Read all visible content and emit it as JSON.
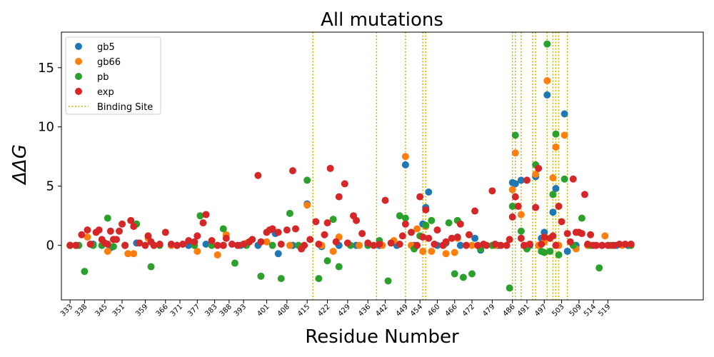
{
  "chart_data": {
    "type": "scatter",
    "title": "All mutations",
    "xlabel": "Residue Number",
    "ylabel": "ΔΔG",
    "ylim": [
      -4.6,
      18
    ],
    "xlim": [
      330,
      552
    ],
    "y_ticks": [
      0,
      5,
      10,
      15
    ],
    "x_ticks": [
      333,
      338,
      345,
      351,
      359,
      366,
      371,
      377,
      383,
      388,
      393,
      401,
      408,
      415,
      422,
      429,
      436,
      442,
      449,
      454,
      460,
      466,
      472,
      479,
      486,
      491,
      497,
      503,
      509,
      514,
      519
    ],
    "legend": {
      "position": "top-left",
      "entries": [
        "gb5",
        "gb66",
        "pb",
        "exp",
        "Binding Site"
      ]
    },
    "binding_sites": [
      417,
      439,
      449,
      455,
      456,
      486,
      487,
      489,
      493,
      494,
      498,
      500,
      501,
      502,
      505
    ],
    "colors": {
      "gb5": "#1f77b4",
      "gb66": "#ff7f0e",
      "pb": "#2ca02c",
      "exp": "#d62728",
      "binding_site": "#c8b400"
    },
    "series": [
      {
        "name": "gb5",
        "points": [
          [
            333,
            0.0
          ],
          [
            335,
            0.0
          ],
          [
            341,
            0.1
          ],
          [
            344,
            0.0
          ],
          [
            347,
            -0.2
          ],
          [
            352,
            0.0
          ],
          [
            356,
            0.2
          ],
          [
            362,
            0.0
          ],
          [
            368,
            0.0
          ],
          [
            374,
            0.0
          ],
          [
            380,
            0.1
          ],
          [
            386,
            0.0
          ],
          [
            392,
            0.0
          ],
          [
            398,
            0.0
          ],
          [
            404,
            1.0
          ],
          [
            405,
            -0.7
          ],
          [
            410,
            0.0
          ],
          [
            415,
            3.5
          ],
          [
            420,
            -0.1
          ],
          [
            426,
            0.0
          ],
          [
            432,
            0.0
          ],
          [
            440,
            0.0
          ],
          [
            446,
            0.0
          ],
          [
            449,
            6.8
          ],
          [
            452,
            0.0
          ],
          [
            455,
            1.8
          ],
          [
            456,
            3.2
          ],
          [
            457,
            4.5
          ],
          [
            460,
            0.0
          ],
          [
            463,
            0.2
          ],
          [
            468,
            0.0
          ],
          [
            473,
            0.6
          ],
          [
            475,
            -0.4
          ],
          [
            481,
            0.0
          ],
          [
            486,
            5.3
          ],
          [
            487,
            5.2
          ],
          [
            489,
            5.5
          ],
          [
            492,
            0.0
          ],
          [
            494,
            5.8
          ],
          [
            496,
            0.6
          ],
          [
            497,
            1.1
          ],
          [
            498,
            12.7
          ],
          [
            500,
            2.8
          ],
          [
            501,
            4.8
          ],
          [
            504,
            11.1
          ],
          [
            505,
            -0.5
          ],
          [
            508,
            0.0
          ],
          [
            512,
            0.0
          ],
          [
            517,
            0.0
          ],
          [
            522,
            0.0
          ],
          [
            526,
            0.0
          ]
        ]
      },
      {
        "name": "gb66",
        "points": [
          [
            333,
            0.0
          ],
          [
            339,
            0.7
          ],
          [
            346,
            -0.5
          ],
          [
            353,
            -0.7
          ],
          [
            355,
            -0.7
          ],
          [
            360,
            0.6
          ],
          [
            368,
            0.0
          ],
          [
            377,
            -0.5
          ],
          [
            384,
            -0.8
          ],
          [
            387,
            0.9
          ],
          [
            394,
            0.2
          ],
          [
            401,
            0.3
          ],
          [
            409,
            0.0
          ],
          [
            415,
            3.4
          ],
          [
            420,
            0.0
          ],
          [
            424,
            -0.5
          ],
          [
            426,
            0.7
          ],
          [
            433,
            0.0
          ],
          [
            441,
            0.0
          ],
          [
            445,
            0.4
          ],
          [
            449,
            7.5
          ],
          [
            451,
            0.0
          ],
          [
            453,
            1.4
          ],
          [
            455,
            -0.5
          ],
          [
            456,
            1.6
          ],
          [
            458,
            -0.5
          ],
          [
            463,
            -0.7
          ],
          [
            466,
            -0.6
          ],
          [
            467,
            0.6
          ],
          [
            472,
            0.0
          ],
          [
            480,
            0.0
          ],
          [
            485,
            0.5
          ],
          [
            486,
            4.7
          ],
          [
            487,
            7.8
          ],
          [
            489,
            2.6
          ],
          [
            491,
            0.0
          ],
          [
            494,
            6.0
          ],
          [
            495,
            0.0
          ],
          [
            497,
            0.3
          ],
          [
            498,
            13.9
          ],
          [
            500,
            5.7
          ],
          [
            501,
            8.3
          ],
          [
            502,
            0.0
          ],
          [
            504,
            9.3
          ],
          [
            508,
            -0.3
          ],
          [
            512,
            0.0
          ],
          [
            518,
            0.8
          ],
          [
            524,
            0.0
          ],
          [
            527,
            0.0
          ]
        ]
      },
      {
        "name": "pb",
        "points": [
          [
            333,
            0.0
          ],
          [
            336,
            0.0
          ],
          [
            338,
            -2.2
          ],
          [
            341,
            0.0
          ],
          [
            344,
            0.0
          ],
          [
            346,
            2.3
          ],
          [
            348,
            -0.1
          ],
          [
            352,
            0.0
          ],
          [
            356,
            1.8
          ],
          [
            361,
            -1.8
          ],
          [
            364,
            0.0
          ],
          [
            370,
            0.0
          ],
          [
            376,
            0.0
          ],
          [
            378,
            2.5
          ],
          [
            382,
            0.0
          ],
          [
            386,
            1.4
          ],
          [
            390,
            -1.5
          ],
          [
            394,
            0.0
          ],
          [
            399,
            -2.6
          ],
          [
            403,
            0.0
          ],
          [
            406,
            -2.8
          ],
          [
            409,
            2.7
          ],
          [
            412,
            0.0
          ],
          [
            415,
            5.5
          ],
          [
            419,
            -2.8
          ],
          [
            422,
            -1.3
          ],
          [
            424,
            2.2
          ],
          [
            426,
            -1.8
          ],
          [
            430,
            0.0
          ],
          [
            436,
            0.0
          ],
          [
            440,
            0.4
          ],
          [
            443,
            -3.0
          ],
          [
            447,
            2.5
          ],
          [
            449,
            2.3
          ],
          [
            452,
            -0.3
          ],
          [
            454,
            0.8
          ],
          [
            456,
            1.7
          ],
          [
            458,
            2.1
          ],
          [
            462,
            0.0
          ],
          [
            464,
            1.9
          ],
          [
            466,
            -2.4
          ],
          [
            467,
            2.1
          ],
          [
            469,
            -2.7
          ],
          [
            472,
            -2.4
          ],
          [
            475,
            -0.3
          ],
          [
            479,
            0.0
          ],
          [
            485,
            -3.6
          ],
          [
            486,
            3.3
          ],
          [
            487,
            9.3
          ],
          [
            489,
            1.2
          ],
          [
            491,
            -0.3
          ],
          [
            494,
            6.8
          ],
          [
            496,
            -0.5
          ],
          [
            497,
            -0.6
          ],
          [
            498,
            17.0
          ],
          [
            499,
            -0.5
          ],
          [
            500,
            4.3
          ],
          [
            501,
            9.4
          ],
          [
            502,
            -0.8
          ],
          [
            504,
            5.6
          ],
          [
            507,
            0.0
          ],
          [
            510,
            2.3
          ],
          [
            513,
            0.0
          ],
          [
            516,
            -1.9
          ],
          [
            520,
            0.0
          ],
          [
            527,
            0.0
          ]
        ]
      },
      {
        "name": "exp",
        "points": [
          [
            333,
            0.0
          ],
          [
            335,
            0.0
          ],
          [
            337,
            0.9
          ],
          [
            339,
            1.3
          ],
          [
            340,
            0.1
          ],
          [
            342,
            1.1
          ],
          [
            343,
            1.3
          ],
          [
            344,
            0.5
          ],
          [
            345,
            0.2
          ],
          [
            346,
            0.1
          ],
          [
            347,
            1.2
          ],
          [
            348,
            0.5
          ],
          [
            349,
            0.5
          ],
          [
            350,
            1.2
          ],
          [
            351,
            1.8
          ],
          [
            352,
            0.0
          ],
          [
            354,
            2.1
          ],
          [
            355,
            1.6
          ],
          [
            357,
            0.2
          ],
          [
            359,
            0.0
          ],
          [
            360,
            0.8
          ],
          [
            361,
            0.3
          ],
          [
            362,
            0.0
          ],
          [
            364,
            0.1
          ],
          [
            366,
            1.1
          ],
          [
            368,
            0.1
          ],
          [
            370,
            0.0
          ],
          [
            372,
            0.1
          ],
          [
            374,
            0.4
          ],
          [
            376,
            0.3
          ],
          [
            377,
            0.8
          ],
          [
            379,
            1.9
          ],
          [
            380,
            2.6
          ],
          [
            382,
            0.4
          ],
          [
            384,
            0.0
          ],
          [
            386,
            0.0
          ],
          [
            387,
            0.6
          ],
          [
            389,
            0.1
          ],
          [
            391,
            0.0
          ],
          [
            393,
            0.1
          ],
          [
            395,
            0.3
          ],
          [
            396,
            0.5
          ],
          [
            398,
            5.9
          ],
          [
            399,
            0.3
          ],
          [
            401,
            1.1
          ],
          [
            402,
            1.3
          ],
          [
            403,
            1.4
          ],
          [
            405,
            1.1
          ],
          [
            406,
            0.1
          ],
          [
            408,
            1.3
          ],
          [
            410,
            6.3
          ],
          [
            411,
            1.4
          ],
          [
            413,
            -0.3
          ],
          [
            414,
            0.0
          ],
          [
            416,
            0.5
          ],
          [
            418,
            2.0
          ],
          [
            419,
            0.1
          ],
          [
            421,
            0.9
          ],
          [
            422,
            1.9
          ],
          [
            423,
            6.5
          ],
          [
            425,
            0.3
          ],
          [
            426,
            4.1
          ],
          [
            428,
            5.2
          ],
          [
            429,
            0.2
          ],
          [
            431,
            2.5
          ],
          [
            432,
            2.1
          ],
          [
            434,
            1.0
          ],
          [
            436,
            0.2
          ],
          [
            438,
            0.0
          ],
          [
            440,
            0.1
          ],
          [
            442,
            3.8
          ],
          [
            444,
            0.2
          ],
          [
            447,
            0.1
          ],
          [
            448,
            0.8
          ],
          [
            449,
            1.8
          ],
          [
            451,
            1.1
          ],
          [
            453,
            0.0
          ],
          [
            454,
            4.1
          ],
          [
            455,
            0.7
          ],
          [
            456,
            3.0
          ],
          [
            457,
            0.6
          ],
          [
            459,
            0.1
          ],
          [
            460,
            1.3
          ],
          [
            462,
            0.0
          ],
          [
            463,
            0.3
          ],
          [
            465,
            0.6
          ],
          [
            467,
            0.7
          ],
          [
            468,
            1.8
          ],
          [
            470,
            0.0
          ],
          [
            471,
            0.9
          ],
          [
            473,
            2.9
          ],
          [
            474,
            0.0
          ],
          [
            476,
            0.1
          ],
          [
            477,
            0.0
          ],
          [
            479,
            4.6
          ],
          [
            480,
            0.1
          ],
          [
            482,
            0.0
          ],
          [
            484,
            0.0
          ],
          [
            485,
            0.5
          ],
          [
            486,
            2.4
          ],
          [
            487,
            4.1
          ],
          [
            488,
            3.3
          ],
          [
            489,
            0.6
          ],
          [
            490,
            0.0
          ],
          [
            491,
            5.5
          ],
          [
            492,
            0.1
          ],
          [
            494,
            3.2
          ],
          [
            495,
            6.5
          ],
          [
            496,
            0.1
          ],
          [
            497,
            0.7
          ],
          [
            499,
            0.6
          ],
          [
            500,
            0.8
          ],
          [
            501,
            0.0
          ],
          [
            502,
            3.3
          ],
          [
            503,
            2.0
          ],
          [
            505,
            1.0
          ],
          [
            506,
            0.3
          ],
          [
            507,
            5.6
          ],
          [
            508,
            1.1
          ],
          [
            509,
            1.1
          ],
          [
            510,
            1.0
          ],
          [
            511,
            4.3
          ],
          [
            512,
            0.1
          ],
          [
            513,
            0.9
          ],
          [
            514,
            0.0
          ],
          [
            515,
            0.0
          ],
          [
            517,
            0.0
          ],
          [
            519,
            0.0
          ],
          [
            521,
            0.0
          ],
          [
            523,
            0.1
          ],
          [
            525,
            0.1
          ],
          [
            527,
            0.1
          ]
        ]
      }
    ]
  },
  "legend_labels": [
    "gb5",
    "gb66",
    "pb",
    "exp",
    "Binding Site"
  ]
}
